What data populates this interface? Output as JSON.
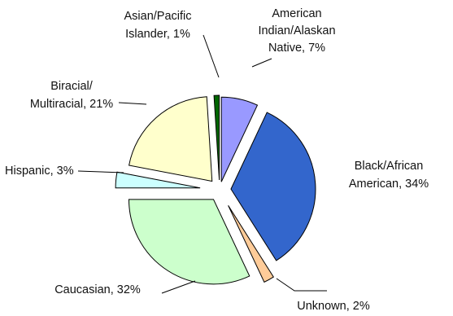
{
  "chart_data": {
    "type": "pie",
    "title": "",
    "exploded": true,
    "slices": [
      {
        "key": "american_indian",
        "name": "American Indian/Alaskan Native",
        "value": 7,
        "display": [
          "American",
          "Indian/Alaskan",
          "Native, 7%"
        ],
        "color": "#9999ff"
      },
      {
        "key": "black",
        "name": "Black/African American",
        "value": 34,
        "display": [
          "Black/African",
          "American, 34%"
        ],
        "color": "#3366cc"
      },
      {
        "key": "unknown",
        "name": "Unknown",
        "value": 2,
        "display": [
          "Unknown, 2%"
        ],
        "color": "#ffcc99"
      },
      {
        "key": "caucasian",
        "name": "Caucasian",
        "value": 32,
        "display": [
          "Caucasian, 32%"
        ],
        "color": "#ccffcc"
      },
      {
        "key": "hispanic",
        "name": "Hispanic",
        "value": 3,
        "display": [
          "Hispanic, 3%"
        ],
        "color": "#ccffff"
      },
      {
        "key": "biracial",
        "name": "Biracial/Multiracial",
        "value": 21,
        "display": [
          "Biracial/",
          "Multiracial, 21%"
        ],
        "color": "#ffffcc"
      },
      {
        "key": "asian",
        "name": "Asian/Pacific Islander",
        "value": 1,
        "display": [
          "Asian/Pacific",
          "Islander, 1%"
        ],
        "color": "#006600"
      }
    ]
  }
}
